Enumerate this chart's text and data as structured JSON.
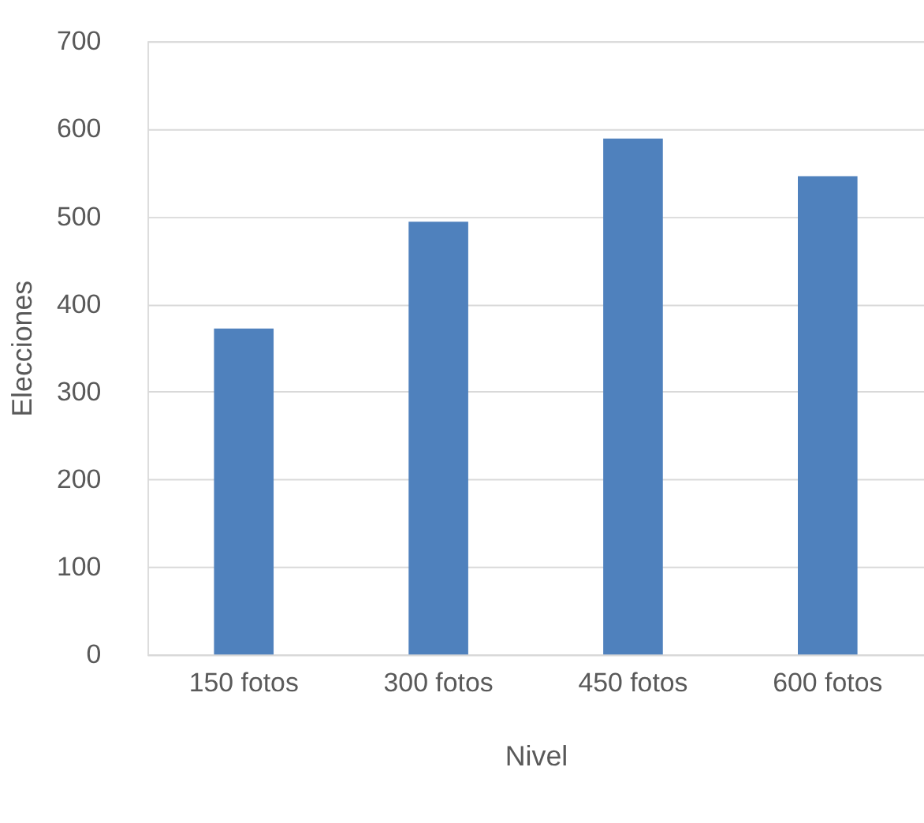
{
  "chart_data": {
    "type": "bar",
    "xlabel": "Nivel",
    "ylabel": "Elecciones",
    "categories": [
      "150 fotos",
      "300 fotos",
      "450 fotos",
      "600 fotos"
    ],
    "values": [
      372,
      494,
      589,
      546
    ],
    "color": "#4f81bd",
    "ylim": [
      0,
      700
    ],
    "yticks": [
      0,
      100,
      200,
      300,
      400,
      500,
      600,
      700
    ],
    "grid": "y"
  }
}
